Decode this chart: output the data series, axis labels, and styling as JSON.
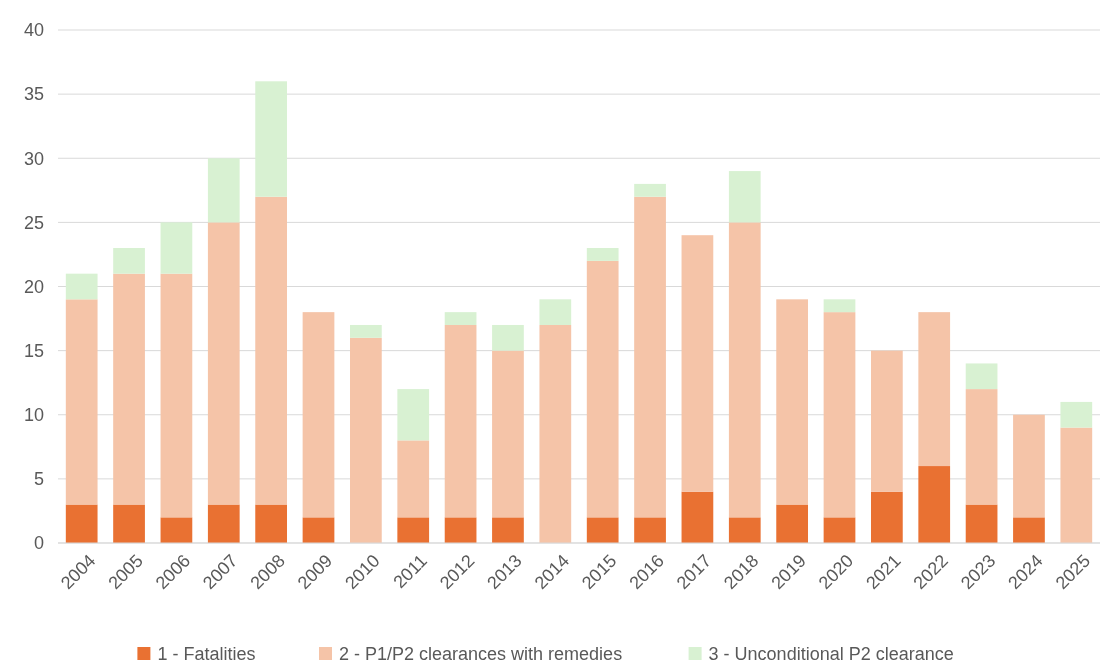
{
  "chart_data": {
    "type": "bar",
    "stacked": true,
    "categories": [
      "2004",
      "2005",
      "2006",
      "2007",
      "2008",
      "2009",
      "2010",
      "2011",
      "2012",
      "2013",
      "2014",
      "2015",
      "2016",
      "2017",
      "2018",
      "2019",
      "2020",
      "2021",
      "2022",
      "2023",
      "2024",
      "2025"
    ],
    "series": [
      {
        "name": "1 - Fatalities",
        "color": "#e97132",
        "values": [
          3,
          3,
          2,
          3,
          3,
          2,
          0,
          2,
          2,
          2,
          0,
          2,
          2,
          4,
          2,
          3,
          2,
          4,
          6,
          3,
          2,
          0
        ]
      },
      {
        "name": "2 - P1/P2 clearances with remedies",
        "color": "#f5c4a8",
        "values": [
          16,
          18,
          19,
          22,
          24,
          16,
          16,
          6,
          15,
          13,
          17,
          20,
          25,
          20,
          23,
          16,
          16,
          11,
          12,
          9,
          8,
          9
        ]
      },
      {
        "name": "3 - Unconditional P2 clearance",
        "color": "#d8f1d2",
        "values": [
          2,
          2,
          4,
          5,
          9,
          0,
          1,
          4,
          1,
          2,
          2,
          1,
          1,
          0,
          4,
          0,
          1,
          0,
          0,
          2,
          0,
          2
        ]
      }
    ],
    "ylim": [
      0,
      40
    ],
    "yticks": [
      0,
      5,
      10,
      15,
      20,
      25,
      30,
      35,
      40
    ],
    "grid": "y",
    "legend": "bottom"
  }
}
